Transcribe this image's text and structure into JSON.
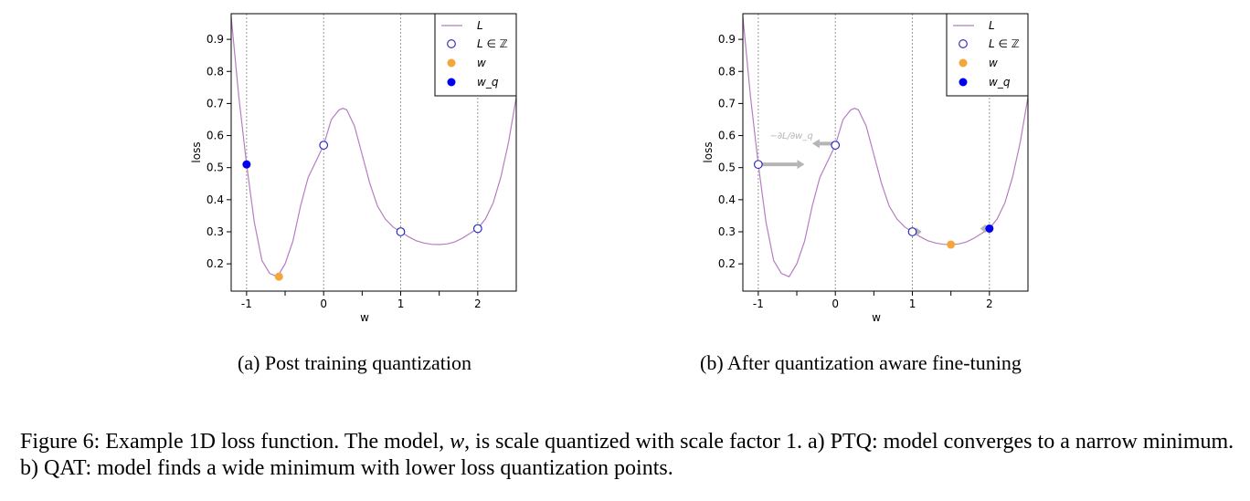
{
  "chart_data": [
    {
      "type": "line",
      "panel_label": "(a) Post training quantization",
      "xlabel": "w",
      "ylabel": "loss",
      "xlim": [
        -1.2,
        2.5
      ],
      "ylim": [
        0.115,
        0.98
      ],
      "xticks": [
        -1,
        0,
        1,
        2
      ],
      "xtick_labels": [
        "-1",
        "0",
        "1",
        "2"
      ],
      "yticks": [
        0.2,
        0.3,
        0.4,
        0.5,
        0.6,
        0.7,
        0.8,
        0.9
      ],
      "ytick_labels": [
        "0.2",
        "0.3",
        "0.4",
        "0.5",
        "0.6",
        "0.7",
        "0.8",
        "0.9"
      ],
      "minor_xticks": [
        -0.5,
        0.5,
        1.5
      ],
      "vlines": [
        -1,
        0,
        1,
        2
      ],
      "curve": {
        "name": "L",
        "color": "#b57ec2",
        "x": [
          -1.2,
          -1.1,
          -1.0,
          -0.9,
          -0.8,
          -0.7,
          -0.6,
          -0.5,
          -0.4,
          -0.3,
          -0.2,
          -0.1,
          0.0,
          0.1,
          0.2,
          0.25,
          0.3,
          0.4,
          0.5,
          0.6,
          0.7,
          0.8,
          0.9,
          1.0,
          1.1,
          1.2,
          1.3,
          1.4,
          1.5,
          1.6,
          1.7,
          1.8,
          1.9,
          2.0,
          2.1,
          2.2,
          2.3,
          2.4,
          2.5
        ],
        "y": [
          0.97,
          0.72,
          0.51,
          0.33,
          0.21,
          0.17,
          0.16,
          0.2,
          0.27,
          0.38,
          0.47,
          0.52,
          0.57,
          0.65,
          0.68,
          0.685,
          0.68,
          0.63,
          0.54,
          0.45,
          0.38,
          0.34,
          0.315,
          0.3,
          0.285,
          0.272,
          0.265,
          0.261,
          0.26,
          0.262,
          0.268,
          0.28,
          0.295,
          0.31,
          0.34,
          0.39,
          0.47,
          0.58,
          0.72
        ]
      },
      "integer_points": {
        "name": "L ∈ ℤ",
        "color": "#1f1fbf",
        "x": [
          0,
          1,
          2
        ],
        "y": [
          0.57,
          0.3,
          0.31
        ]
      },
      "w": {
        "name": "w",
        "color": "#f5a53a",
        "x": -0.58,
        "y": 0.16
      },
      "w_q": {
        "name": "w_q",
        "color": "#0000ee",
        "x": -1,
        "y": 0.51
      },
      "legend": {
        "placement": "top-right",
        "entries": [
          "L",
          "L ∈ ℤ",
          "w",
          "w_q"
        ]
      },
      "grid": false
    },
    {
      "type": "line",
      "panel_label": "(b) After quantization aware fine-tuning",
      "xlabel": "w",
      "ylabel": "loss",
      "xlim": [
        -1.2,
        2.5
      ],
      "ylim": [
        0.115,
        0.98
      ],
      "xticks": [
        -1,
        0,
        1,
        2
      ],
      "xtick_labels": [
        "-1",
        "0",
        "1",
        "2"
      ],
      "yticks": [
        0.2,
        0.3,
        0.4,
        0.5,
        0.6,
        0.7,
        0.8,
        0.9
      ],
      "ytick_labels": [
        "0.2",
        "0.3",
        "0.4",
        "0.5",
        "0.6",
        "0.7",
        "0.8",
        "0.9"
      ],
      "minor_xticks": [
        -0.5,
        0.5,
        1.5
      ],
      "vlines": [
        -1,
        0,
        1,
        2
      ],
      "curve": {
        "name": "L",
        "color": "#b57ec2",
        "x": [
          -1.2,
          -1.1,
          -1.0,
          -0.9,
          -0.8,
          -0.7,
          -0.6,
          -0.5,
          -0.4,
          -0.3,
          -0.2,
          -0.1,
          0.0,
          0.1,
          0.2,
          0.25,
          0.3,
          0.4,
          0.5,
          0.6,
          0.7,
          0.8,
          0.9,
          1.0,
          1.1,
          1.2,
          1.3,
          1.4,
          1.5,
          1.6,
          1.7,
          1.8,
          1.9,
          2.0,
          2.1,
          2.2,
          2.3,
          2.4,
          2.5
        ],
        "y": [
          0.97,
          0.72,
          0.51,
          0.33,
          0.21,
          0.17,
          0.16,
          0.2,
          0.27,
          0.38,
          0.47,
          0.52,
          0.57,
          0.65,
          0.68,
          0.685,
          0.68,
          0.63,
          0.54,
          0.45,
          0.38,
          0.34,
          0.315,
          0.3,
          0.285,
          0.272,
          0.265,
          0.261,
          0.26,
          0.262,
          0.268,
          0.28,
          0.295,
          0.31,
          0.34,
          0.39,
          0.47,
          0.58,
          0.72
        ]
      },
      "integer_points": {
        "name": "L ∈ ℤ",
        "color": "#1f1fbf",
        "x": [
          -1,
          0,
          1
        ],
        "y": [
          0.51,
          0.57,
          0.3
        ]
      },
      "w": {
        "name": "w",
        "color": "#f5a53a",
        "x": 1.5,
        "y": 0.26
      },
      "w_q": {
        "name": "w_q",
        "color": "#0000ee",
        "x": 2,
        "y": 0.31
      },
      "gradient_annotation": {
        "label": "−∂L/∂w_q",
        "color": "#b5b5b5"
      },
      "gradient_arrows": [
        {
          "from_x": -1.0,
          "to_x": -0.4,
          "y": 0.51
        },
        {
          "from_x": 0.0,
          "to_x": -0.3,
          "y": 0.575
        },
        {
          "from_x": 1.0,
          "to_x": 1.12,
          "y": 0.3
        },
        {
          "from_x": 2.0,
          "to_x": 1.88,
          "y": 0.31
        }
      ],
      "legend": {
        "placement": "top-right",
        "entries": [
          "L",
          "L ∈ ℤ",
          "w",
          "w_q"
        ]
      },
      "grid": false
    }
  ],
  "captions": {
    "a": "(a) Post training quantization",
    "b": "(b) After quantization aware fine-tuning",
    "figure": {
      "prefix": "Figure 6: Example 1D loss function. The model, ",
      "var": "w",
      "suffix": ", is scale quantized with scale factor 1. a) PTQ: model converges to a narrow minimum. b) QAT: model finds a wide minimum with lower loss quantization points."
    }
  }
}
